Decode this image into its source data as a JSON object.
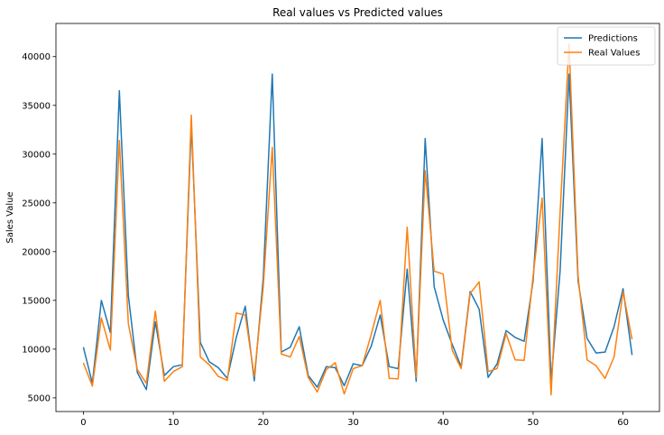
{
  "chart_data": {
    "type": "line",
    "title": "Real values vs Predicted values",
    "xlabel": "",
    "ylabel": "Sales Value",
    "xlim": [
      -3.05,
      64.05
    ],
    "ylim": [
      3600,
      43400
    ],
    "xticks": [
      0,
      10,
      20,
      30,
      40,
      50,
      60
    ],
    "yticks": [
      5000,
      10000,
      15000,
      20000,
      25000,
      30000,
      35000,
      40000
    ],
    "grid": false,
    "legend_position": "top-right",
    "x": [
      0,
      1,
      2,
      3,
      4,
      5,
      6,
      7,
      8,
      9,
      10,
      11,
      12,
      13,
      14,
      15,
      16,
      17,
      18,
      19,
      20,
      21,
      22,
      23,
      24,
      25,
      26,
      27,
      28,
      29,
      30,
      31,
      32,
      33,
      34,
      35,
      36,
      37,
      38,
      39,
      40,
      41,
      42,
      43,
      44,
      45,
      46,
      47,
      48,
      49,
      50,
      51,
      52,
      53,
      54,
      55,
      56,
      57,
      58,
      59,
      60,
      61
    ],
    "series": [
      {
        "name": "Predictions",
        "color": "#1f77b4",
        "values": [
          10200,
          6500,
          15000,
          11700,
          36500,
          15500,
          7600,
          5850,
          12800,
          7300,
          8200,
          8400,
          33000,
          10700,
          8700,
          8100,
          7000,
          11200,
          14400,
          6750,
          17300,
          38200,
          9700,
          10200,
          12300,
          7300,
          6100,
          8200,
          8100,
          6250,
          8500,
          8300,
          10300,
          13500,
          8200,
          8000,
          18200,
          6700,
          31600,
          16400,
          13000,
          10500,
          8200,
          15900,
          14100,
          7100,
          8500,
          11900,
          11200,
          10800,
          17000,
          31600,
          6700,
          18000,
          38200,
          17000,
          11100,
          9600,
          9700,
          12300,
          16200,
          9400
        ]
      },
      {
        "name": "Real Values",
        "color": "#ff7f0e",
        "values": [
          8600,
          6200,
          13200,
          9900,
          31400,
          12600,
          7900,
          6500,
          13900,
          6700,
          7700,
          8200,
          34000,
          9200,
          8400,
          7200,
          6800,
          13700,
          13500,
          7200,
          16400,
          30700,
          9500,
          9200,
          11300,
          7100,
          5600,
          7900,
          8600,
          5400,
          8000,
          8300,
          11500,
          15000,
          7000,
          6950,
          22500,
          7100,
          28300,
          18000,
          17700,
          9900,
          8000,
          15700,
          16900,
          7700,
          8000,
          11600,
          8900,
          8850,
          17500,
          25500,
          5300,
          24000,
          41300,
          17500,
          8900,
          8300,
          7000,
          9200,
          15900,
          11000
        ]
      }
    ]
  }
}
